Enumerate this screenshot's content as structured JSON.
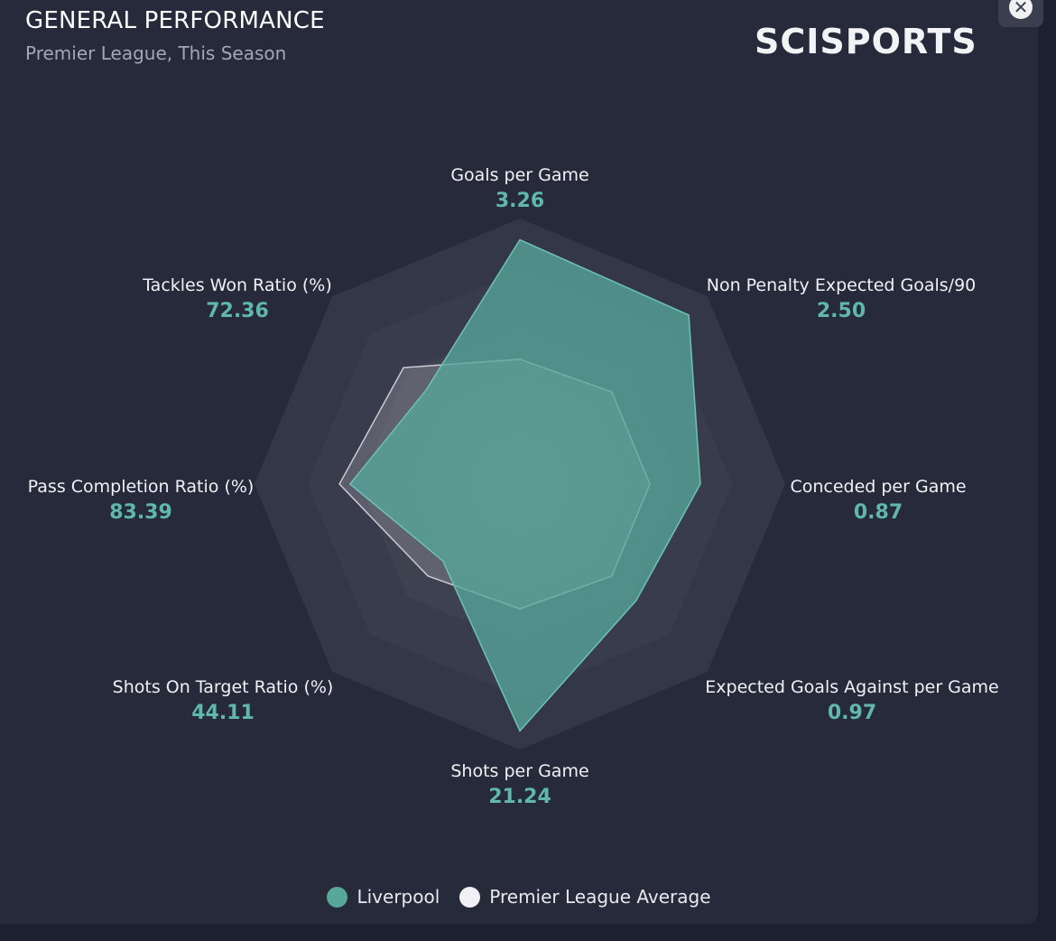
{
  "header": {
    "title": "GENERAL PERFORMANCE",
    "subtitle": "Premier League, This Season",
    "brand": "SCISPORTS",
    "close_icon": "close-icon"
  },
  "colors": {
    "team": "#57a79b",
    "team_stroke": "#6cc3b5",
    "average": "#d9d9e0",
    "value_text": "#5fb8aa"
  },
  "chart_data": {
    "type": "radar",
    "title": "GENERAL PERFORMANCE",
    "subtitle": "Premier League, This Season",
    "rings": 5,
    "scale": [
      0,
      1
    ],
    "axes": [
      {
        "label": "Goals per Game",
        "value": "3.26"
      },
      {
        "label": "Non Penalty Expected Goals/90",
        "value": "2.50"
      },
      {
        "label": "Conceded per Game",
        "value": "0.87"
      },
      {
        "label": "Expected Goals Against per Game",
        "value": "0.97"
      },
      {
        "label": "Shots per Game",
        "value": "21.24"
      },
      {
        "label": "Shots On Target Ratio (%)",
        "value": "44.11"
      },
      {
        "label": "Pass Completion Ratio (%)",
        "value": "83.39"
      },
      {
        "label": "Tackles Won Ratio (%)",
        "value": "72.36"
      }
    ],
    "series": [
      {
        "name": "Liverpool",
        "values": [
          0.92,
          0.9,
          0.68,
          0.62,
          0.93,
          0.41,
          0.64,
          0.5
        ]
      },
      {
        "name": "Premier League Average",
        "values": [
          0.47,
          0.49,
          0.49,
          0.49,
          0.47,
          0.49,
          0.68,
          0.62
        ]
      }
    ],
    "legend_position": "bottom"
  }
}
